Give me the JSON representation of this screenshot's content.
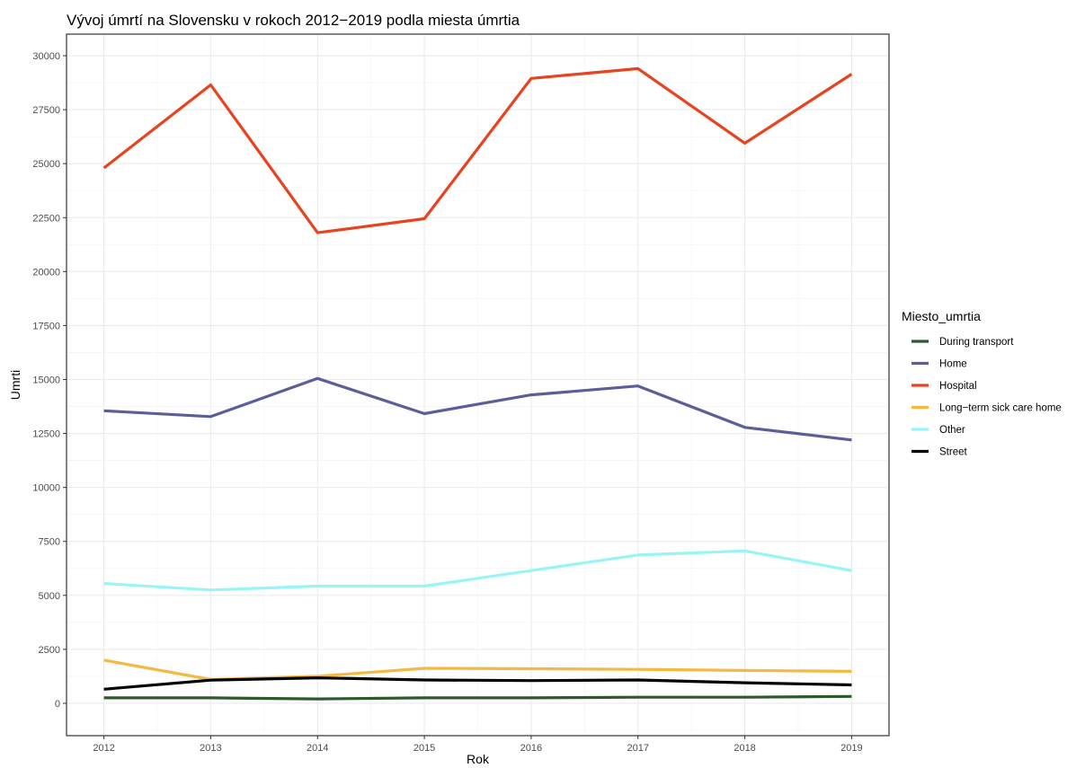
{
  "chart_data": {
    "type": "line",
    "title": "Vývoj úmrtí na Slovensku v rokoch 2012−2019 podla miesta úmrtia",
    "xlabel": "Rok",
    "ylabel": "Umrti",
    "x": [
      2012,
      2013,
      2014,
      2015,
      2016,
      2017,
      2018,
      2019
    ],
    "x_tick_labels": [
      "2012",
      "2013",
      "2014",
      "2015",
      "2016",
      "2017",
      "2018",
      "2019"
    ],
    "xlim": [
      2011.65,
      2019.35
    ],
    "ylim": [
      -1500,
      31000
    ],
    "y_ticks": [
      0,
      2500,
      5000,
      7500,
      10000,
      12500,
      15000,
      17500,
      20000,
      22500,
      25000,
      27500,
      30000
    ],
    "y_tick_labels": [
      "0",
      "2500",
      "5000",
      "7500",
      "10000",
      "12500",
      "15000",
      "17500",
      "20000",
      "22500",
      "25000",
      "27500",
      "30000"
    ],
    "grid": true,
    "legend_title": "Miesto_umrtia",
    "legend_position": "right",
    "series": [
      {
        "name": "During transport",
        "color": "#2e5a2b",
        "values": [
          250,
          250,
          200,
          250,
          250,
          280,
          280,
          320
        ]
      },
      {
        "name": "Home",
        "color": "#5a5f99",
        "values": [
          13550,
          13280,
          15050,
          13420,
          14290,
          14700,
          12780,
          12200
        ]
      },
      {
        "name": "Hospital",
        "color": "#e8431f",
        "values": [
          24800,
          28650,
          21800,
          22450,
          28950,
          29400,
          25950,
          29150
        ]
      },
      {
        "name": "Long−term sick care home",
        "color": "#f5b942",
        "values": [
          2000,
          1100,
          1250,
          1620,
          1600,
          1570,
          1520,
          1480
        ]
      },
      {
        "name": "Other",
        "color": "#99f5f5",
        "values": [
          5550,
          5250,
          5430,
          5430,
          6150,
          6870,
          7060,
          6150
        ]
      },
      {
        "name": "Street",
        "color": "#000000",
        "values": [
          650,
          1070,
          1180,
          1080,
          1050,
          1080,
          950,
          850
        ]
      }
    ]
  }
}
